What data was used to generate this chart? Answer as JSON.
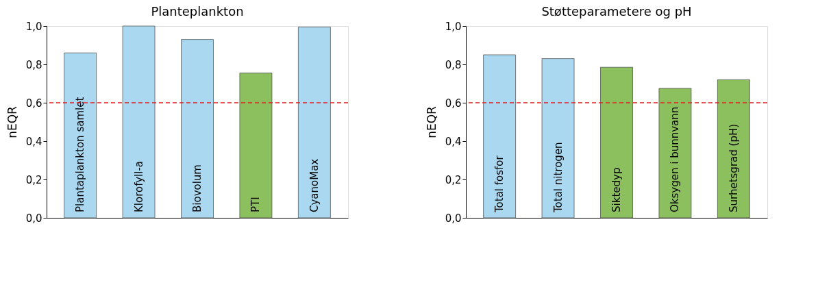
{
  "chart_data": [
    {
      "type": "bar",
      "title": "Planteplankton",
      "ylabel": "nEQR",
      "categories": [
        "Plantaplankton samlet",
        "Klorofyll-a",
        "Biovolum",
        "PTI",
        "CyanoMax"
      ],
      "values": [
        0.86,
        1.0,
        0.93,
        0.755,
        0.995
      ],
      "colors": [
        "#a9d8f0",
        "#a9d8f0",
        "#a9d8f0",
        "#8cbf5e",
        "#a9d8f0"
      ],
      "ylim": [
        0,
        1
      ],
      "yticks": [
        {
          "value": 0,
          "label": "0,0"
        },
        {
          "value": 0.2,
          "label": "0,2"
        },
        {
          "value": 0.4,
          "label": "0,4"
        },
        {
          "value": 0.6,
          "label": "0,6"
        },
        {
          "value": 0.8,
          "label": "0,8"
        },
        {
          "value": 1,
          "label": "1,0"
        }
      ],
      "ref_lines": [
        {
          "axis": "y",
          "value": 0.6,
          "color": "#e02020",
          "line_style": "dashed"
        }
      ],
      "tick_labels": "y",
      "grid": false
    },
    {
      "type": "bar",
      "title": "Støtteparametere og pH",
      "ylabel": "nEQR",
      "categories": [
        "Total fosfor",
        "Total nitrogen",
        "Siktedyp",
        "Oksygen i bunnvann",
        "Surhetsgrad (pH)"
      ],
      "values": [
        0.85,
        0.83,
        0.785,
        0.675,
        0.72
      ],
      "colors": [
        "#a9d8f0",
        "#a9d8f0",
        "#8cbf5e",
        "#8cbf5e",
        "#8cbf5e"
      ],
      "ylim": [
        0,
        1
      ],
      "yticks": [
        {
          "value": 0,
          "label": "0,0"
        },
        {
          "value": 0.2,
          "label": "0,2"
        },
        {
          "value": 0.4,
          "label": "0,4"
        },
        {
          "value": 0.6,
          "label": "0,6"
        },
        {
          "value": 0.8,
          "label": "0,8"
        },
        {
          "value": 1,
          "label": "1,0"
        }
      ],
      "ref_lines": [
        {
          "axis": "y",
          "value": 0.6,
          "color": "#e02020",
          "line_style": "dashed"
        }
      ],
      "tick_labels": "y",
      "grid": false
    }
  ]
}
